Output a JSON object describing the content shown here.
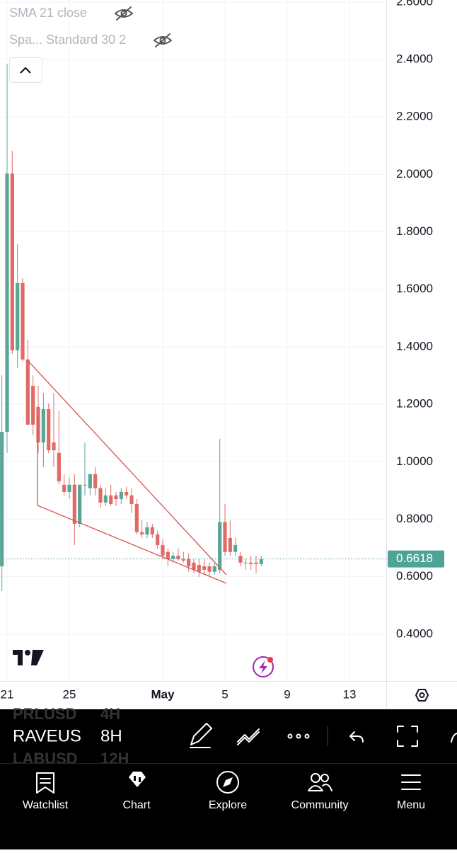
{
  "indicators": [
    {
      "label": "SMA 21 close"
    },
    {
      "label": "Spa... Standard 30 2"
    }
  ],
  "chart_data": {
    "type": "candlestick",
    "x": [
      20.667,
      21,
      21.333,
      21.667,
      22,
      22.333,
      22.667,
      23,
      23.333,
      23.667,
      24,
      24.333,
      24.667,
      25,
      25.333,
      25.667,
      26,
      26.333,
      26.667,
      27,
      27.333,
      27.667,
      28,
      28.333,
      28.667,
      29,
      29.333,
      29.667,
      30,
      30.333,
      30.667,
      31,
      31.333,
      31.667,
      32,
      32.333,
      32.667,
      33,
      33.333,
      33.667,
      34,
      34.333,
      34.667,
      35,
      35.333,
      35.667,
      36,
      36.333,
      36.667,
      37,
      37.333
    ],
    "open": [
      0.636,
      1.104,
      2.003,
      1.388,
      1.622,
      1.356,
      1.264,
      1.191,
      1.067,
      1.183,
      1.067,
      1.031,
      0.92,
      0.895,
      0.92,
      0.784,
      0.92,
      0.908,
      0.957,
      0.908,
      0.858,
      0.883,
      0.883,
      0.87,
      0.895,
      0.883,
      0.853,
      0.755,
      0.747,
      0.772,
      0.747,
      0.71,
      0.686,
      0.661,
      0.673,
      0.661,
      0.661,
      0.649,
      0.641,
      0.636,
      0.636,
      0.617,
      0.624,
      0.79,
      0.735,
      0.686,
      0.673,
      0.649,
      0.649,
      0.649,
      0.644
    ],
    "high": [
      1.301,
      2.385,
      2.082,
      1.757,
      1.639,
      1.425,
      1.301,
      1.264,
      1.24,
      1.203,
      1.24,
      1.178,
      0.957,
      0.945,
      0.957,
      0.908,
      1.067,
      0.957,
      0.981,
      0.92,
      0.908,
      0.92,
      0.895,
      0.908,
      0.913,
      0.908,
      0.87,
      0.797,
      0.79,
      0.784,
      0.76,
      0.73,
      0.698,
      0.686,
      0.698,
      0.686,
      0.681,
      0.661,
      0.661,
      0.661,
      0.649,
      0.649,
      1.08,
      0.853,
      0.797,
      0.735,
      0.686,
      0.661,
      0.673,
      0.673,
      0.673
    ],
    "low": [
      0.55,
      1.031,
      1.375,
      1.326,
      1.35,
      1.129,
      1.092,
      1.031,
      0.981,
      1.031,
      0.981,
      0.92,
      0.883,
      0.87,
      0.71,
      0.772,
      0.883,
      0.883,
      0.883,
      0.839,
      0.846,
      0.846,
      0.846,
      0.853,
      0.87,
      0.821,
      0.747,
      0.735,
      0.735,
      0.735,
      0.698,
      0.661,
      0.636,
      0.649,
      0.656,
      0.649,
      0.617,
      0.612,
      0.599,
      0.607,
      0.599,
      0.607,
      0.612,
      0.673,
      0.673,
      0.673,
      0.636,
      0.624,
      0.624,
      0.612,
      0.636
    ],
    "close": [
      1.104,
      2.003,
      1.388,
      1.622,
      1.356,
      1.129,
      1.129,
      1.067,
      1.183,
      1.04,
      1.04,
      0.932,
      0.895,
      0.92,
      0.784,
      0.92,
      0.92,
      0.957,
      0.908,
      0.858,
      0.883,
      0.853,
      0.87,
      0.895,
      0.883,
      0.853,
      0.755,
      0.747,
      0.772,
      0.747,
      0.71,
      0.673,
      0.661,
      0.673,
      0.661,
      0.656,
      0.636,
      0.624,
      0.617,
      0.624,
      0.617,
      0.636,
      0.79,
      0.686,
      0.686,
      0.71,
      0.649,
      0.649,
      0.644,
      0.644,
      0.661
    ],
    "up_color": "#5aa595",
    "down_color": "#e06b66",
    "xlim": [
      20.545,
      45.364
    ],
    "xticks": [
      21,
      25,
      {
        "value": 31,
        "label": "May"
      },
      {
        "value": 35,
        "label": "5"
      },
      {
        "value": 39,
        "label": "9"
      },
      {
        "value": 43,
        "label": "13"
      }
    ],
    "ylim": [
      0.237,
      2.607
    ],
    "yticks": [
      {
        "value": 0.4,
        "label": "0.4000"
      },
      {
        "value": 0.6,
        "label": "0.6000"
      },
      {
        "value": 0.8,
        "label": "0.8000"
      },
      {
        "value": 1.0,
        "label": "1.0000"
      },
      {
        "value": 1.2,
        "label": "1.2000"
      },
      {
        "value": 1.4,
        "label": "1.4000"
      },
      {
        "value": 1.6,
        "label": "1.6000"
      },
      {
        "value": 1.8,
        "label": "1.8000"
      },
      {
        "value": 2.0,
        "label": "2.0000"
      },
      {
        "value": 2.2,
        "label": "2.2000"
      },
      {
        "value": 2.4,
        "label": "2.4000"
      },
      {
        "value": 2.6,
        "label": "2.6000"
      }
    ],
    "last_price": 0.6618,
    "last_price_color": "#4fa396",
    "grid": true
  },
  "toolbar": {
    "symbol": "RAVEUSD",
    "interval": "8H",
    "other_symbols": [
      {
        "symbol": "PRLUSD",
        "interval": "4H"
      },
      {
        "symbol": "LABUSD",
        "interval": "12H"
      }
    ]
  },
  "nav": [
    "Watchlist",
    "Chart",
    "Explore",
    "Community",
    "Menu"
  ]
}
